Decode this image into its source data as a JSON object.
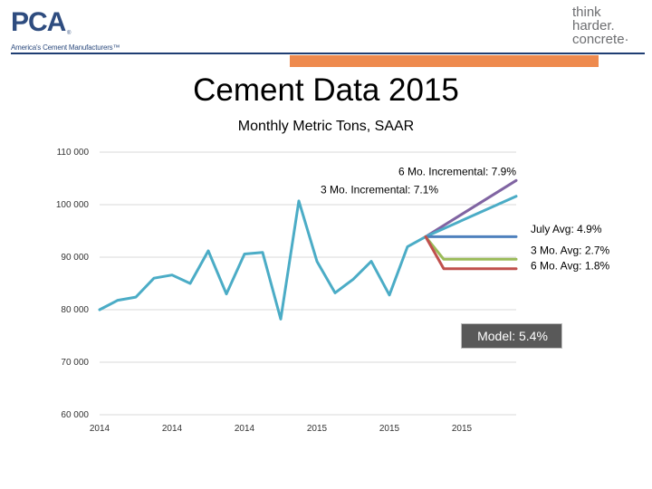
{
  "header": {
    "logo_text": "PCA",
    "logo_reg": "®",
    "logo_tagline": "America's Cement Manufacturers™",
    "slogan_lines": [
      "think",
      "harder.",
      "concrete·"
    ],
    "colors": {
      "brand": "#2e4c7f",
      "accent": "#ee8a4e",
      "slogan": "#6d6e71"
    }
  },
  "chart_data": {
    "type": "line",
    "title": "Cement Data 2015",
    "subtitle": "Monthly Metric Tons, SAAR",
    "ylim": [
      60000,
      110000
    ],
    "y_ticks": [
      60000,
      70000,
      80000,
      90000,
      100000,
      110000
    ],
    "y_tick_labels": [
      "60 000",
      "70 000",
      "80 000",
      "90 000",
      "100 000",
      "110 000"
    ],
    "x_range": [
      0,
      23
    ],
    "x_ticks": [
      0,
      4,
      8,
      12,
      16,
      20
    ],
    "x_tick_labels": [
      "2014",
      "2014",
      "2014",
      "2015",
      "2015",
      "2015"
    ],
    "grid": true,
    "series": [
      {
        "color": "#4bacc6",
        "x": [
          0,
          1,
          2,
          3,
          4,
          5,
          6,
          7,
          8,
          9,
          10,
          11,
          12,
          13,
          14,
          15,
          16,
          17,
          18
        ],
        "values": [
          80000,
          81800,
          82400,
          86000,
          86600,
          85000,
          91200,
          83000,
          90600,
          90900,
          78200,
          100700,
          89200,
          83200,
          85800,
          89200,
          82800,
          92000,
          93900
        ]
      },
      {
        "color": "#8064a2",
        "x": [
          18,
          23
        ],
        "values": [
          93900,
          104600
        ]
      },
      {
        "color": "#4bacc6",
        "x": [
          18,
          23
        ],
        "values": [
          93900,
          101600
        ]
      },
      {
        "color": "#4f81bd",
        "x": [
          18,
          23
        ],
        "values": [
          93900,
          93900
        ]
      },
      {
        "color": "#9bbb59",
        "x": [
          18,
          19,
          23
        ],
        "values": [
          93900,
          89600,
          89600
        ]
      },
      {
        "color": "#c0504d",
        "x": [
          18,
          19,
          23
        ],
        "values": [
          93900,
          87800,
          87800
        ]
      }
    ],
    "annotations": [
      {
        "text": "6 Mo. Incremental: 7.9%",
        "x": 23,
        "y": 104600,
        "anchor": "end"
      },
      {
        "text": "3 Mo. Incremental: 7.1%",
        "x": 12.2,
        "y": 101100,
        "anchor": "start"
      },
      {
        "text": "July Avg: 4.9%",
        "x": 23.8,
        "y": 93600,
        "anchor": "start"
      },
      {
        "text": "3 Mo. Avg: 2.7%",
        "x": 23.8,
        "y": 89600,
        "anchor": "start"
      },
      {
        "text": "6 Mo. Avg: 1.8%",
        "x": 23.8,
        "y": 86600,
        "anchor": "start"
      }
    ],
    "model_label": "Model: 5.4%"
  }
}
